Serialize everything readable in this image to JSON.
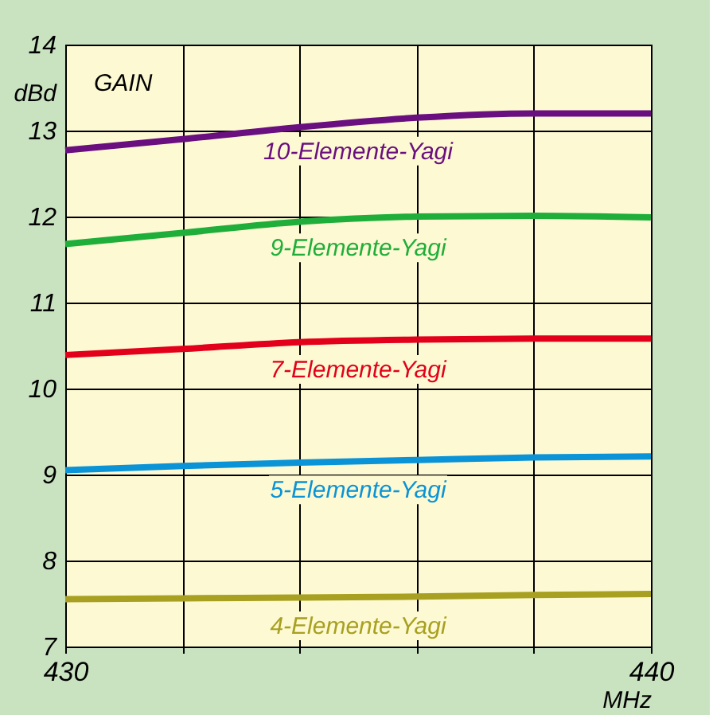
{
  "chart_data": {
    "type": "line",
    "xlabel": "MHz",
    "ylabel": "dBd",
    "annotations": [
      "GAIN"
    ],
    "x": [
      430,
      432,
      434,
      436,
      438,
      440
    ],
    "xlim": [
      430,
      440
    ],
    "xticks": [
      430,
      {
        "value": 432,
        "label": null
      },
      {
        "value": 434,
        "label": null
      },
      {
        "value": 436,
        "label": null
      },
      {
        "value": 438,
        "label": null
      },
      440
    ],
    "ylim": [
      7,
      14
    ],
    "yticks": [
      7,
      8,
      9,
      10,
      11,
      12,
      13,
      14
    ],
    "grid": true,
    "legend": false,
    "marker": "none",
    "line_style": "solid",
    "series": [
      {
        "name": "10-Elemente-Yagi",
        "color": "#6a0f7f",
        "values": [
          12.77,
          12.9,
          13.04,
          13.15,
          13.2,
          13.2
        ]
      },
      {
        "name": "9-Elemente-Yagi",
        "color": "#1fae3a",
        "values": [
          11.68,
          11.81,
          11.94,
          12.0,
          12.01,
          11.99
        ]
      },
      {
        "name": "7-Elemente-Yagi",
        "color": "#e2001a",
        "values": [
          10.39,
          10.46,
          10.54,
          10.57,
          10.58,
          10.58
        ]
      },
      {
        "name": "5-Elemente-Yagi",
        "color": "#0a93d6",
        "values": [
          9.05,
          9.1,
          9.14,
          9.17,
          9.2,
          9.21
        ]
      },
      {
        "name": "4-Elemente-Yagi",
        "color": "#a8a020",
        "values": [
          7.55,
          7.56,
          7.57,
          7.58,
          7.6,
          7.61
        ]
      }
    ]
  }
}
